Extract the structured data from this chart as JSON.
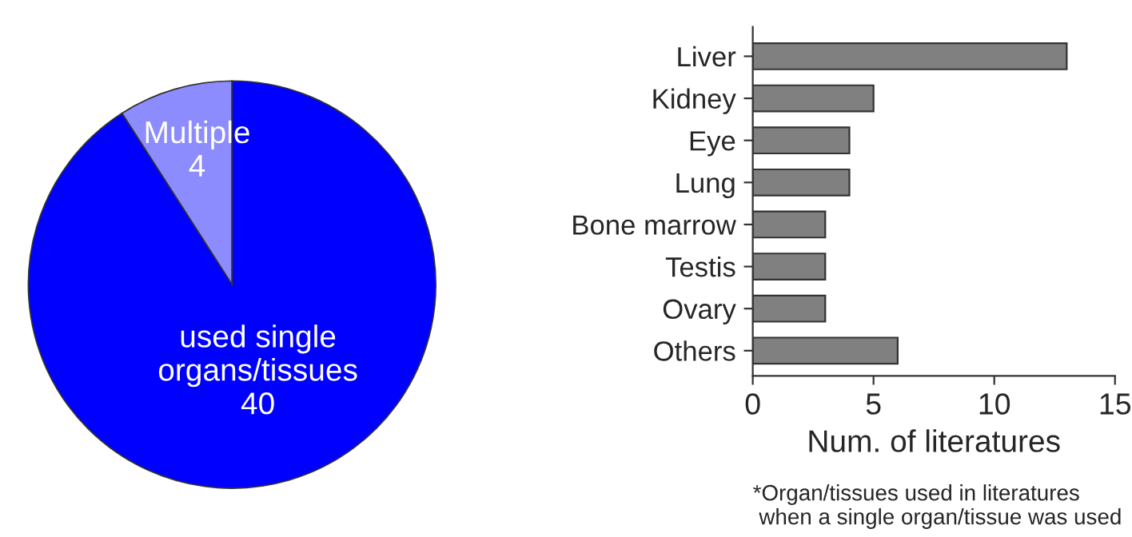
{
  "chart_data": [
    {
      "type": "pie",
      "categories": [
        "Multiple",
        "used single\norgans/tissues"
      ],
      "values": [
        4,
        40
      ],
      "colors": [
        "#8c8cff",
        "#0000ff"
      ],
      "data_labels": true
    },
    {
      "type": "bar",
      "orientation": "horizontal",
      "categories": [
        "Liver",
        "Kidney",
        "Eye",
        "Lung",
        "Bone marrow",
        "Testis",
        "Ovary",
        "Others"
      ],
      "values": [
        13,
        5,
        4,
        4,
        3,
        3,
        3,
        6
      ],
      "color": "#808080",
      "xlim": [
        0,
        15
      ],
      "xticks": [
        0,
        5,
        10,
        15
      ],
      "xlabel": "Num. of literatures",
      "annotations": [
        "*Organ/tissues used in literatures\n when a single organ/tissue was used"
      ]
    }
  ]
}
